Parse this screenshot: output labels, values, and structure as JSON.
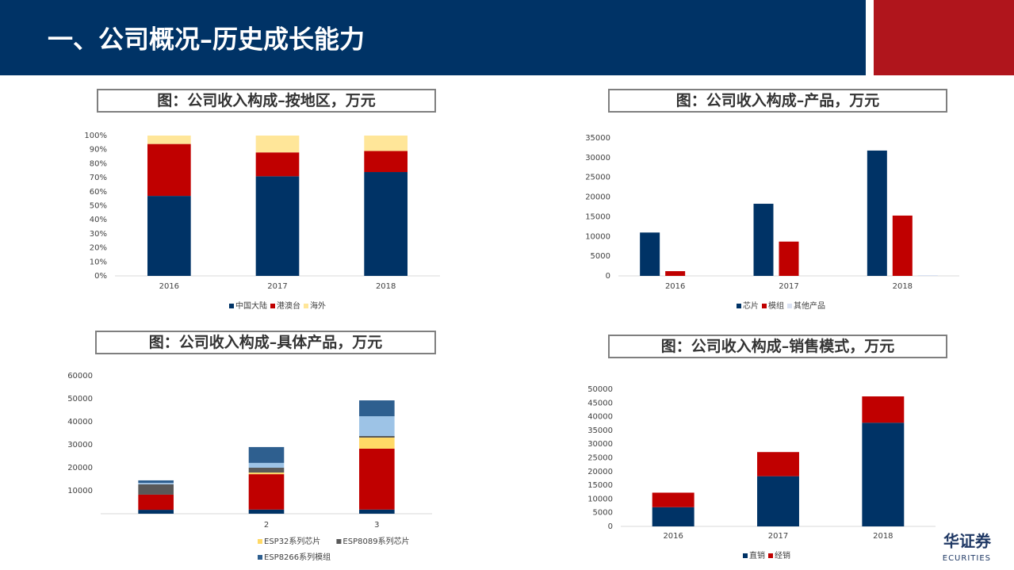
{
  "header": {
    "title": "一、公司概况–历史成长能力"
  },
  "logo": {
    "cn": "华证券",
    "en": "ECURITIES"
  },
  "chart_data": [
    {
      "type": "bar",
      "stacked": true,
      "title": "图：公司收入构成–按地区，万元",
      "categories": [
        "2016",
        "2017",
        "2018"
      ],
      "series": [
        {
          "name": "中国大陆",
          "color": "#003366",
          "values": [
            57,
            71,
            74
          ]
        },
        {
          "name": "港澳台",
          "color": "#c00000",
          "values": [
            37,
            17,
            15
          ]
        },
        {
          "name": "海外",
          "color": "#ffe699",
          "values": [
            6,
            12,
            11
          ]
        }
      ],
      "ylim": [
        0,
        100
      ],
      "yticks": [
        {
          "value": 0,
          "label": "0%"
        },
        {
          "value": 10,
          "label": "10%"
        },
        {
          "value": 20,
          "label": "20%"
        },
        {
          "value": 30,
          "label": "30%"
        },
        {
          "value": 40,
          "label": "40%"
        },
        {
          "value": 50,
          "label": "50%"
        },
        {
          "value": 60,
          "label": "60%"
        },
        {
          "value": 70,
          "label": "70%"
        },
        {
          "value": 80,
          "label": "80%"
        },
        {
          "value": 90,
          "label": "90%"
        },
        {
          "value": 100,
          "label": "100%"
        }
      ]
    },
    {
      "type": "bar",
      "stacked": false,
      "title": "图：公司收入构成–产品，万元",
      "categories": [
        "2016",
        "2017",
        "2018"
      ],
      "series": [
        {
          "name": "芯片",
          "color": "#003366",
          "values": [
            11000,
            18300,
            31800
          ]
        },
        {
          "name": "模组",
          "color": "#c00000",
          "values": [
            1200,
            8700,
            15300
          ]
        },
        {
          "name": "其他产品",
          "color": "#d9e1f2",
          "values": [
            0,
            0,
            200
          ]
        }
      ],
      "ylim": [
        0,
        35000
      ],
      "yticks": [
        0,
        5000,
        10000,
        15000,
        20000,
        25000,
        30000,
        35000
      ]
    },
    {
      "type": "bar",
      "stacked": true,
      "title": "图：公司收入构成–具体产品，万元",
      "categories": [
        null,
        "2",
        "3"
      ],
      "series": [
        {
          "name": null,
          "color": "#003366",
          "values": [
            1700,
            1800,
            1800
          ]
        },
        {
          "name": null,
          "color": "#c00000",
          "values": [
            6600,
            15400,
            26500
          ]
        },
        {
          "name": "ESP32系列芯片",
          "color": "#ffd966",
          "values": [
            0,
            700,
            4800
          ]
        },
        {
          "name": "ESP8089系列芯片",
          "color": "#595959",
          "values": [
            4500,
            2100,
            700
          ]
        },
        {
          "name": null,
          "color": "#9dc3e6",
          "values": [
            600,
            2100,
            8600
          ]
        },
        {
          "name": "ESP8266系列模组",
          "color": "#2e5f8f",
          "values": [
            1100,
            6900,
            6900
          ]
        }
      ],
      "ylim": [
        0,
        60000
      ],
      "yticks": [
        10000,
        20000,
        30000,
        40000,
        50000,
        60000
      ]
    },
    {
      "type": "bar",
      "stacked": true,
      "title": "图：公司收入构成–销售模式，万元",
      "categories": [
        "2016",
        "2017",
        "2018"
      ],
      "series": [
        {
          "name": "直销",
          "color": "#003366",
          "values": [
            7000,
            18300,
            37800
          ]
        },
        {
          "name": "经销",
          "color": "#c00000",
          "values": [
            5300,
            8800,
            9600
          ]
        }
      ],
      "ylim": [
        0,
        50000
      ],
      "yticks": [
        0,
        5000,
        10000,
        15000,
        20000,
        25000,
        30000,
        35000,
        40000,
        45000,
        50000
      ]
    }
  ]
}
